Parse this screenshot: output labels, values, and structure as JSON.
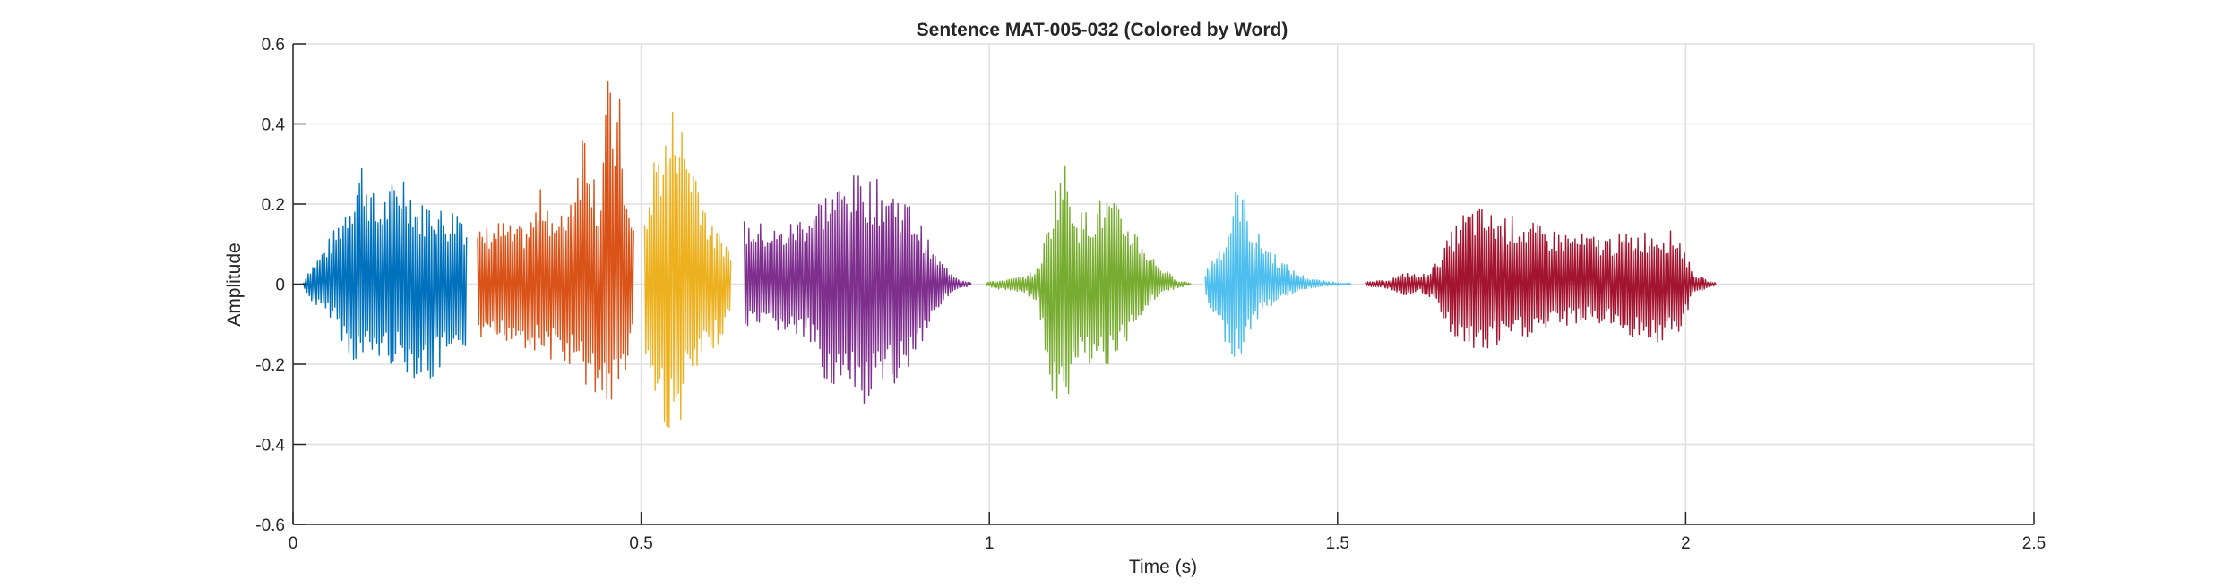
{
  "chart_data": {
    "type": "line",
    "title": "Sentence MAT-005-032 (Colored by Word)",
    "xlabel": "Time (s)",
    "ylabel": "Amplitude",
    "xlim": [
      0,
      2.5
    ],
    "ylim": [
      -0.6,
      0.6
    ],
    "xticks": [
      0,
      0.5,
      1,
      1.5,
      2,
      2.5
    ],
    "xtick_labels": [
      "0",
      "0.5",
      "1",
      "1.5",
      "2",
      "2.5"
    ],
    "yticks": [
      -0.6,
      -0.4,
      -0.2,
      0,
      0.2,
      0.4,
      0.6
    ],
    "ytick_labels": [
      "-0.6",
      "-0.4",
      "-0.2",
      "0",
      "0.2",
      "0.4",
      "0.6"
    ],
    "grid": true,
    "box": true,
    "series": [
      {
        "color": "#0072BD",
        "x": [
          0.015,
          0.02,
          0.04,
          0.06,
          0.08,
          0.1,
          0.12,
          0.14,
          0.16,
          0.18,
          0.2,
          0.22,
          0.24,
          0.25
        ],
        "upper": [
          0.005,
          0.03,
          0.08,
          0.14,
          0.23,
          0.33,
          0.2,
          0.25,
          0.3,
          0.2,
          0.22,
          0.18,
          0.21,
          0.15
        ],
        "lower": [
          -0.005,
          -0.03,
          -0.07,
          -0.09,
          -0.19,
          -0.2,
          -0.19,
          -0.2,
          -0.22,
          -0.24,
          -0.25,
          -0.2,
          -0.24,
          -0.15
        ]
      },
      {
        "color": "#D95319",
        "x": [
          0.265,
          0.28,
          0.3,
          0.32,
          0.34,
          0.36,
          0.38,
          0.4,
          0.42,
          0.44,
          0.45,
          0.46,
          0.47,
          0.48,
          0.49
        ],
        "upper": [
          0.13,
          0.15,
          0.16,
          0.14,
          0.16,
          0.26,
          0.15,
          0.25,
          0.45,
          0.2,
          0.54,
          0.45,
          0.47,
          0.2,
          0.15
        ],
        "lower": [
          -0.14,
          -0.17,
          -0.15,
          -0.14,
          -0.17,
          -0.18,
          -0.2,
          -0.21,
          -0.26,
          -0.3,
          -0.3,
          -0.32,
          -0.28,
          -0.2,
          -0.15
        ]
      },
      {
        "color": "#EDB120",
        "x": [
          0.505,
          0.52,
          0.54,
          0.55,
          0.56,
          0.58,
          0.6,
          0.62,
          0.63
        ],
        "upper": [
          0.15,
          0.35,
          0.4,
          0.5,
          0.4,
          0.31,
          0.15,
          0.12,
          0.08
        ],
        "lower": [
          -0.2,
          -0.3,
          -0.38,
          -0.43,
          -0.3,
          -0.24,
          -0.18,
          -0.12,
          -0.08
        ]
      },
      {
        "color": "#7E2F8E",
        "x": [
          0.648,
          0.66,
          0.7,
          0.74,
          0.76,
          0.78,
          0.8,
          0.82,
          0.84,
          0.86,
          0.88,
          0.9,
          0.92,
          0.94,
          0.96,
          0.975
        ],
        "upper": [
          0.16,
          0.16,
          0.14,
          0.19,
          0.23,
          0.25,
          0.27,
          0.28,
          0.26,
          0.25,
          0.22,
          0.16,
          0.08,
          0.04,
          0.01,
          0.005
        ],
        "lower": [
          -0.12,
          -0.12,
          -0.12,
          -0.15,
          -0.23,
          -0.27,
          -0.3,
          -0.32,
          -0.3,
          -0.26,
          -0.22,
          -0.16,
          -0.08,
          -0.03,
          -0.01,
          -0.005
        ]
      },
      {
        "color": "#77AC30",
        "x": [
          0.995,
          1.02,
          1.05,
          1.07,
          1.09,
          1.1,
          1.11,
          1.12,
          1.13,
          1.15,
          1.17,
          1.19,
          1.21,
          1.23,
          1.25,
          1.27,
          1.29
        ],
        "upper": [
          0.005,
          0.01,
          0.02,
          0.04,
          0.2,
          0.3,
          0.31,
          0.24,
          0.18,
          0.2,
          0.23,
          0.18,
          0.14,
          0.08,
          0.04,
          0.01,
          0.002
        ],
        "lower": [
          -0.005,
          -0.015,
          -0.02,
          -0.05,
          -0.3,
          -0.35,
          -0.32,
          -0.28,
          -0.2,
          -0.2,
          -0.22,
          -0.18,
          -0.1,
          -0.05,
          -0.02,
          -0.01,
          -0.002
        ]
      },
      {
        "color": "#4DBEEE",
        "x": [
          1.31,
          1.33,
          1.34,
          1.35,
          1.36,
          1.37,
          1.38,
          1.4,
          1.42,
          1.44,
          1.46,
          1.48,
          1.5,
          1.52
        ],
        "upper": [
          0.03,
          0.1,
          0.12,
          0.22,
          0.27,
          0.2,
          0.14,
          0.1,
          0.06,
          0.03,
          0.015,
          0.008,
          0.004,
          0.002
        ],
        "lower": [
          -0.04,
          -0.12,
          -0.15,
          -0.18,
          -0.19,
          -0.14,
          -0.1,
          -0.06,
          -0.04,
          -0.02,
          -0.01,
          -0.005,
          -0.003,
          -0.002
        ]
      },
      {
        "color": "#A2142F",
        "x": [
          1.54,
          1.57,
          1.6,
          1.62,
          1.64,
          1.66,
          1.68,
          1.7,
          1.72,
          1.76,
          1.8,
          1.84,
          1.88,
          1.92,
          1.96,
          1.99,
          2.01,
          2.03,
          2.045
        ],
        "upper": [
          0.005,
          0.01,
          0.03,
          0.02,
          0.05,
          0.12,
          0.18,
          0.2,
          0.18,
          0.17,
          0.14,
          0.13,
          0.12,
          0.13,
          0.14,
          0.13,
          0.03,
          0.01,
          0.003
        ],
        "lower": [
          -0.005,
          -0.01,
          -0.03,
          -0.02,
          -0.05,
          -0.12,
          -0.16,
          -0.18,
          -0.17,
          -0.14,
          -0.12,
          -0.1,
          -0.1,
          -0.13,
          -0.15,
          -0.14,
          -0.03,
          -0.01,
          -0.003
        ]
      }
    ]
  }
}
